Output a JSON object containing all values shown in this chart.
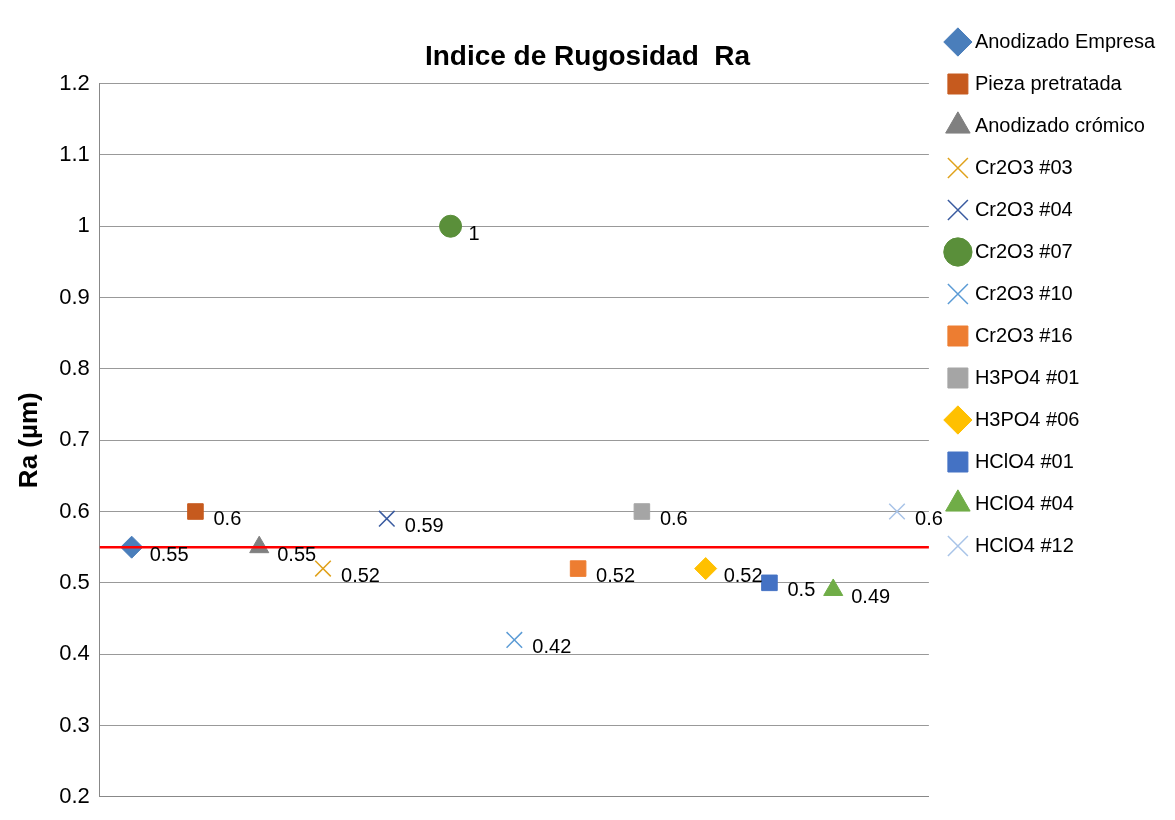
{
  "chart_data": {
    "type": "scatter",
    "title": "Indice de Rugosidad  Ra",
    "ylabel": "Ra (µm)",
    "categories": [
      null,
      null,
      null,
      null,
      null,
      null,
      null,
      null,
      null,
      null,
      null,
      null,
      null
    ],
    "series": [
      {
        "name": "Anodizado Empresa",
        "color": "#4a7ebb",
        "marker": "diamond",
        "values": [
          0.55,
          null,
          null,
          null,
          null,
          null,
          null,
          null,
          null,
          null,
          null,
          null,
          null
        ]
      },
      {
        "name": "Pieza pretratada",
        "color": "#c65a1e",
        "marker": "square",
        "values": [
          null,
          0.6,
          null,
          null,
          null,
          null,
          null,
          null,
          null,
          null,
          null,
          null,
          null
        ]
      },
      {
        "name": "Anodizado crómico",
        "color": "#808080",
        "marker": "triangle",
        "values": [
          null,
          null,
          0.55,
          null,
          null,
          null,
          null,
          null,
          null,
          null,
          null,
          null,
          null
        ]
      },
      {
        "name": "Cr2O3 #03",
        "color": "#e0a21c",
        "marker": "cross",
        "values": [
          null,
          null,
          null,
          0.52,
          null,
          null,
          null,
          null,
          null,
          null,
          null,
          null,
          null
        ]
      },
      {
        "name": "Cr2O3 #04",
        "color": "#3a5ba0",
        "marker": "cross",
        "values": [
          null,
          null,
          null,
          null,
          0.59,
          null,
          null,
          null,
          null,
          null,
          null,
          null,
          null
        ]
      },
      {
        "name": "Cr2O3 #07",
        "color": "#5a8f3a",
        "marker": "circle",
        "values": [
          null,
          null,
          null,
          null,
          null,
          1,
          null,
          null,
          null,
          null,
          null,
          null,
          null
        ]
      },
      {
        "name": "Cr2O3 #10",
        "color": "#5b9bd5",
        "marker": "cross",
        "values": [
          null,
          null,
          null,
          null,
          null,
          null,
          0.42,
          null,
          null,
          null,
          null,
          null,
          null
        ]
      },
      {
        "name": "Cr2O3 #16",
        "color": "#ed7d31",
        "marker": "square",
        "values": [
          null,
          null,
          null,
          null,
          null,
          null,
          null,
          0.52,
          null,
          null,
          null,
          null,
          null
        ]
      },
      {
        "name": "H3PO4 #01",
        "color": "#a5a5a5",
        "marker": "square",
        "values": [
          null,
          null,
          null,
          null,
          null,
          null,
          null,
          null,
          0.6,
          null,
          null,
          null,
          null
        ]
      },
      {
        "name": "H3PO4 #06",
        "color": "#ffc000",
        "marker": "diamond",
        "values": [
          null,
          null,
          null,
          null,
          null,
          null,
          null,
          null,
          null,
          0.52,
          null,
          null,
          null
        ]
      },
      {
        "name": "HClO4 #01",
        "color": "#4472c4",
        "marker": "square",
        "values": [
          null,
          null,
          null,
          null,
          null,
          null,
          null,
          null,
          null,
          null,
          0.5,
          null,
          null
        ]
      },
      {
        "name": "HClO4 #04",
        "color": "#70ad47",
        "marker": "triangle",
        "values": [
          null,
          null,
          null,
          null,
          null,
          null,
          null,
          null,
          null,
          null,
          null,
          0.49,
          null
        ]
      },
      {
        "name": "HClO4 #12",
        "color": "#a9c4e8",
        "marker": "cross",
        "values": [
          null,
          null,
          null,
          null,
          null,
          null,
          null,
          null,
          null,
          null,
          null,
          null,
          0.6
        ]
      }
    ],
    "ylim": [
      0.2,
      1.2
    ],
    "yticks": [
      0.2,
      0.3,
      0.4,
      0.5,
      0.6,
      0.7,
      0.8,
      0.9,
      1,
      1.1,
      1.2
    ],
    "grid": "y",
    "legend": "right",
    "tick_labels": "y",
    "data_labels": true,
    "ref_lines": [
      {
        "axis": "y",
        "value": 0.55,
        "color": "#ff0000"
      }
    ]
  }
}
